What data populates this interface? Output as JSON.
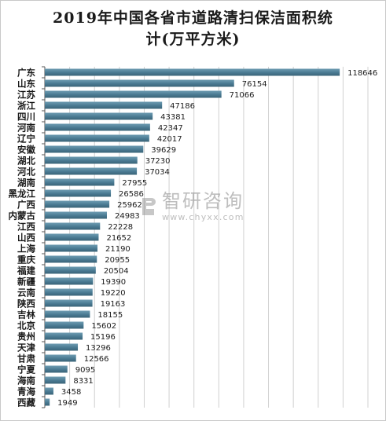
{
  "title_line1": "2019年中国各省市道路清扫保洁面积统",
  "title_line2": "计(万平方米)",
  "watermark": {
    "name": "智研咨询",
    "url": "www.chyxx.com"
  },
  "colors": {
    "bar": "#4a7a92",
    "bar_light": "#6f9db3",
    "grid": "#d0d0d0",
    "axis": "#555555",
    "text": "#1a1a1a"
  },
  "chart_data": {
    "type": "bar",
    "orientation": "horizontal",
    "title": "2019年中国各省市道路清扫保洁面积统计(万平方米)",
    "xlabel": "",
    "ylabel": "",
    "xlim": [
      0,
      130000
    ],
    "grid": true,
    "categories": [
      "广东",
      "山东",
      "江苏",
      "浙江",
      "四川",
      "河南",
      "辽宁",
      "安徽",
      "湖北",
      "河北",
      "湖南",
      "黑龙江",
      "广西",
      "内蒙古",
      "江西",
      "山西",
      "上海",
      "重庆",
      "福建",
      "新疆",
      "云南",
      "陕西",
      "吉林",
      "北京",
      "贵州",
      "天津",
      "甘肃",
      "宁夏",
      "海南",
      "青海",
      "西藏"
    ],
    "values": [
      118646,
      76154,
      71066,
      47186,
      43381,
      42347,
      42017,
      39629,
      37230,
      37034,
      27955,
      26586,
      25962,
      24983,
      22228,
      21652,
      21190,
      20955,
      20504,
      19390,
      19220,
      19163,
      18155,
      15602,
      15196,
      13296,
      12566,
      9095,
      8331,
      3458,
      1949
    ]
  }
}
